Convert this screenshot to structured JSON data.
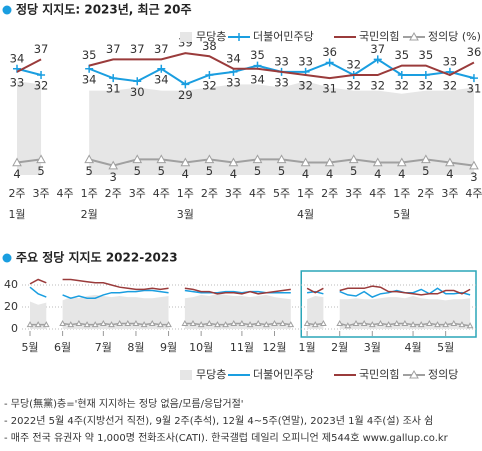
{
  "chart_data": [
    {
      "type": "line",
      "title": "정당 지지도: 2023년, 최근 20주",
      "categories": [
        "2주",
        "3주",
        "4주",
        "1주",
        "2주",
        "3주",
        "4주",
        "1주",
        "2주",
        "3주",
        "4주",
        "5주",
        "1주",
        "2주",
        "3주",
        "4주",
        "1주",
        "2주",
        "3주",
        "4주"
      ],
      "month_labels": [
        "1월",
        null,
        null,
        "2월",
        null,
        null,
        null,
        "3월",
        null,
        null,
        null,
        null,
        "4월",
        null,
        null,
        null,
        "5월",
        null,
        null,
        null
      ],
      "ylim": [
        0,
        40
      ],
      "series": [
        {
          "name": "무당층",
          "color": "#e6e6e6",
          "style": "area",
          "values": [
            30,
            29,
            null,
            27,
            27,
            28,
            27,
            27,
            28,
            29,
            29,
            28,
            30,
            28,
            27,
            27,
            26,
            27,
            27,
            28
          ]
        },
        {
          "name": "더불어민주당",
          "color": "#1a9ee0",
          "style": "plus",
          "values": [
            34,
            32,
            null,
            34,
            31,
            30,
            34,
            29,
            32,
            33,
            35,
            33,
            33,
            36,
            32,
            37,
            32,
            32,
            33,
            31
          ]
        },
        {
          "name": "국민의힘",
          "color": "#9a3b3b",
          "style": "line",
          "values": [
            33,
            37,
            null,
            35,
            37,
            37,
            37,
            39,
            38,
            34,
            34,
            33,
            32,
            31,
            32,
            32,
            35,
            35,
            32,
            36
          ]
        },
        {
          "name": "정의당 (%)",
          "color": "#a0a0a0",
          "style": "triangle",
          "values": [
            4,
            5,
            null,
            5,
            3,
            5,
            5,
            4,
            5,
            4,
            5,
            5,
            4,
            4,
            5,
            4,
            4,
            5,
            4,
            3
          ]
        }
      ]
    },
    {
      "type": "line",
      "title": "주요 정당 지지도 2022-2023",
      "categories": [
        "5월",
        null,
        null,
        null,
        "6월",
        null,
        null,
        null,
        null,
        "7월",
        null,
        null,
        null,
        "8월",
        null,
        null,
        null,
        "9월",
        null,
        null,
        null,
        "10월",
        null,
        null,
        null,
        null,
        "11월",
        null,
        null,
        null,
        "12월",
        null,
        null,
        null,
        "1월",
        null,
        null,
        null,
        "2월",
        null,
        null,
        null,
        "3월",
        null,
        null,
        null,
        null,
        "4월",
        null,
        null,
        null,
        "5월",
        null,
        null,
        null
      ],
      "ylim": [
        0,
        50
      ],
      "yticks": [
        0,
        20,
        40
      ],
      "grid": true,
      "highlight_from": 35,
      "series": [
        {
          "name": "무당층",
          "color": "#e6e6e6",
          "style": "area",
          "values": [
            25,
            22,
            24,
            null,
            26,
            29,
            28,
            30,
            31,
            30,
            29,
            30,
            29,
            29,
            28,
            28,
            29,
            30,
            null,
            28,
            29,
            31,
            30,
            32,
            31,
            30,
            30,
            29,
            30,
            31,
            29,
            28,
            27,
            null,
            27,
            30,
            29,
            null,
            27,
            27,
            28,
            27,
            27,
            28,
            29,
            29,
            28,
            30,
            28,
            27,
            27,
            26,
            27,
            27,
            28
          ]
        },
        {
          "name": "더불어민주당",
          "color": "#1a9ee0",
          "style": "line",
          "values": [
            38,
            32,
            29,
            null,
            31,
            28,
            30,
            28,
            28,
            31,
            33,
            33,
            34,
            34,
            35,
            35,
            34,
            33,
            null,
            35,
            34,
            33,
            33,
            33,
            34,
            34,
            33,
            34,
            34,
            33,
            33,
            33,
            33,
            null,
            33,
            34,
            32,
            null,
            34,
            31,
            30,
            34,
            29,
            32,
            33,
            35,
            33,
            33,
            36,
            32,
            37,
            32,
            32,
            33,
            31
          ]
        },
        {
          "name": "국민의힘",
          "color": "#9a3b3b",
          "style": "line",
          "values": [
            41,
            45,
            42,
            null,
            45,
            45,
            44,
            43,
            42,
            42,
            40,
            38,
            37,
            36,
            36,
            37,
            36,
            37,
            null,
            37,
            36,
            34,
            34,
            32,
            33,
            33,
            32,
            34,
            32,
            33,
            34,
            35,
            36,
            null,
            37,
            33,
            37,
            null,
            35,
            37,
            37,
            37,
            39,
            38,
            34,
            34,
            33,
            32,
            31,
            32,
            32,
            35,
            35,
            32,
            36
          ]
        },
        {
          "name": "정의당",
          "color": "#a0a0a0",
          "style": "triangle",
          "values": [
            4,
            4,
            4,
            null,
            5,
            4,
            5,
            4,
            4,
            5,
            4,
            5,
            5,
            5,
            4,
            5,
            4,
            4,
            null,
            5,
            5,
            4,
            5,
            4,
            4,
            5,
            5,
            4,
            5,
            4,
            5,
            5,
            4,
            null,
            5,
            4,
            5,
            null,
            5,
            3,
            5,
            5,
            4,
            5,
            4,
            5,
            5,
            4,
            4,
            5,
            4,
            4,
            5,
            4,
            3
          ]
        }
      ]
    }
  ],
  "notes": [
    "- 무당(無黨)층='현재 지지하는 정당 없음/모름/응답거절'",
    "- 2022년 5월 4주(지방선거 직전), 9월 2주(추석), 12월 4~5주(연말), 2023년 1월 4주(설) 조사 쉼",
    "- 매주 전국 유권자 약 1,000명 전화조사(CATI). 한국갤럽 데일리 오피니언 제544호 www.gallup.co.kr"
  ]
}
